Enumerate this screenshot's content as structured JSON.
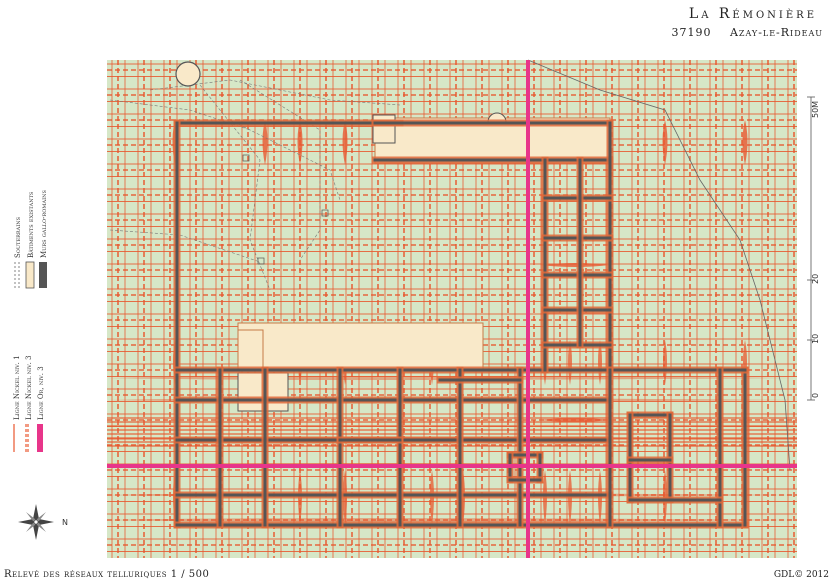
{
  "header": {
    "title": "La Rémonière",
    "postal_code": "37190",
    "town": "Azay-le-Rideau"
  },
  "footer": {
    "caption": "Relevé des réseaux telluriques 1 / 500",
    "credit": "GDL© 2012"
  },
  "legend_buildings": [
    {
      "label": "Souterrains",
      "color": "#666666",
      "style": "dashed"
    },
    {
      "label": "Bâtiments existants",
      "color": "#f9e9c9",
      "style": "box"
    },
    {
      "label": "Murs gallo-romains",
      "color": "#555555",
      "style": "solid"
    }
  ],
  "legend_lines": [
    {
      "label": "Ligne Nickel niv. 1",
      "color": "#e8582f"
    },
    {
      "label": "Ligne Nickel niv. 3",
      "color": "#e8582f"
    },
    {
      "label": "Ligne Or, niv. 3",
      "color": "#e8358a"
    }
  ],
  "scale_bar": {
    "ticks": [
      "0",
      "10",
      "20",
      "50M"
    ]
  },
  "colors": {
    "field": "#d6e7c7",
    "nickel": "#e8582f",
    "gold": "#e8358a",
    "wall": "#555555",
    "wall_halo": "#e06a3a",
    "building": "#f9e9c9"
  },
  "compass": {
    "north_label": "N",
    "icon": "compass-rose-icon"
  }
}
